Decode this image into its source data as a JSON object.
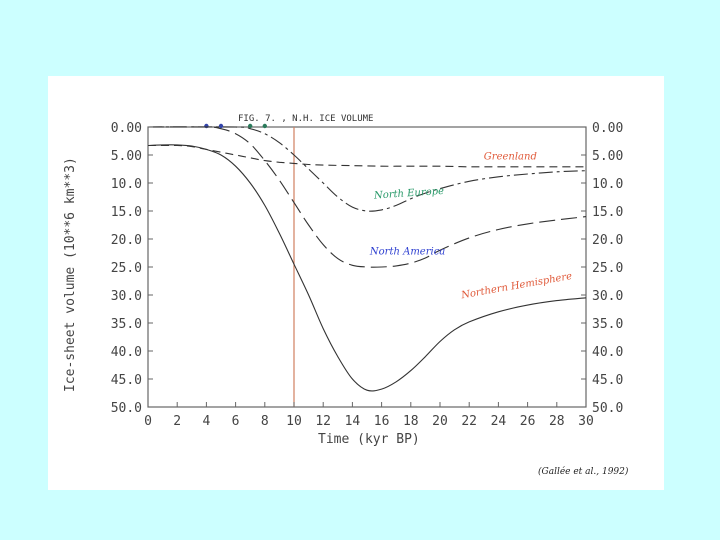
{
  "slide": {
    "background": "#ccffff",
    "paper_color": "#ffffff"
  },
  "chart_data": {
    "type": "line",
    "title": "FIG. 7. , N.H. ICE VOLUME",
    "xlabel": "Time  (kyr BP)",
    "ylabel": "Ice-sheet volume (10**6 km**3)",
    "xlim": [
      0,
      30
    ],
    "ylim": [
      0,
      50
    ],
    "y_inverted": true,
    "x_ticks": [
      0,
      2,
      4,
      6,
      8,
      10,
      12,
      14,
      16,
      18,
      20,
      22,
      24,
      26,
      28,
      30
    ],
    "x_tick_labels": [
      "0",
      "2",
      "4",
      "6",
      "8",
      "10",
      "12",
      "14",
      "16",
      "18",
      "20",
      "22",
      "24",
      "26",
      "28",
      "30"
    ],
    "y_ticks": [
      0,
      5,
      10,
      15,
      20,
      25,
      30,
      35,
      40,
      45,
      50
    ],
    "y_tick_labels": [
      "0.00",
      "5.00",
      "10.0",
      "15.0",
      "20.0",
      "25.0",
      "30.0",
      "35.0",
      "40.0",
      "45.0",
      "50.0"
    ],
    "vertical_marker": {
      "x": 10,
      "color": "#d08060"
    },
    "top_markers": [
      {
        "x": 4,
        "color": "#3344aa"
      },
      {
        "x": 5,
        "color": "#3344aa"
      },
      {
        "x": 7,
        "color": "#2a7a5a"
      },
      {
        "x": 8,
        "color": "#2a7a5a"
      }
    ],
    "series": [
      {
        "name": "Greenland",
        "color": "#e05a3a",
        "dash": "8 5",
        "label_pos": [
          23,
          5.8
        ],
        "x": [
          0,
          2,
          3,
          4,
          5,
          6,
          7,
          8,
          9,
          10,
          11,
          12,
          14,
          16,
          18,
          20,
          22,
          24,
          26,
          28,
          30
        ],
        "y": [
          3.3,
          3.3,
          3.5,
          4.0,
          4.5,
          5.0,
          5.5,
          6.0,
          6.3,
          6.5,
          6.7,
          6.8,
          6.9,
          7.0,
          7.0,
          7.0,
          7.1,
          7.1,
          7.1,
          7.1,
          7.1
        ]
      },
      {
        "name": "North  Europe",
        "color": "#2a9a6a",
        "dash": "14 4 3 4",
        "label_pos": [
          15.5,
          12.8
        ],
        "x": [
          0,
          6,
          7,
          8,
          9,
          10,
          11,
          12,
          13,
          14,
          15,
          16,
          17,
          18,
          19,
          20,
          22,
          24,
          26,
          28,
          30
        ],
        "y": [
          0,
          0,
          0.3,
          1.2,
          2.8,
          5.0,
          7.5,
          10.0,
          12.5,
          14.3,
          15.0,
          14.8,
          14.0,
          12.8,
          11.8,
          11.0,
          9.7,
          8.9,
          8.4,
          8.0,
          7.8
        ]
      },
      {
        "name": "North America",
        "color": "#2d3fd0",
        "dash": "16 6",
        "label_pos": [
          15.2,
          22.8
        ],
        "x": [
          0,
          4,
          5,
          6,
          7,
          8,
          9,
          10,
          11,
          12,
          13,
          14,
          15,
          16,
          17,
          18,
          19,
          20,
          22,
          24,
          26,
          28,
          30
        ],
        "y": [
          0,
          0,
          0.3,
          1.2,
          3.0,
          6.0,
          9.5,
          13.5,
          17.5,
          21.0,
          23.5,
          24.7,
          25.0,
          25.0,
          24.8,
          24.3,
          23.4,
          22.0,
          19.8,
          18.3,
          17.3,
          16.6,
          16.0
        ]
      },
      {
        "name": "Northern  Hemisphere",
        "color": "#e05a3a",
        "dash": "",
        "label_pos": [
          21.5,
          30.6
        ],
        "x": [
          0,
          1,
          2,
          3,
          4,
          5,
          6,
          7,
          8,
          9,
          10,
          11,
          12,
          13,
          14,
          15,
          16,
          17,
          18,
          19,
          20,
          21,
          22,
          24,
          26,
          28,
          30
        ],
        "y": [
          3.3,
          3.2,
          3.2,
          3.4,
          4.0,
          5.0,
          7.0,
          10.0,
          14.0,
          19.0,
          24.5,
          30.0,
          36.0,
          41.0,
          45.0,
          47.0,
          46.8,
          45.5,
          43.5,
          41.0,
          38.3,
          36.2,
          34.8,
          33.0,
          31.8,
          31.0,
          30.5
        ]
      }
    ],
    "citation": "(Gallée et al., 1992)"
  }
}
